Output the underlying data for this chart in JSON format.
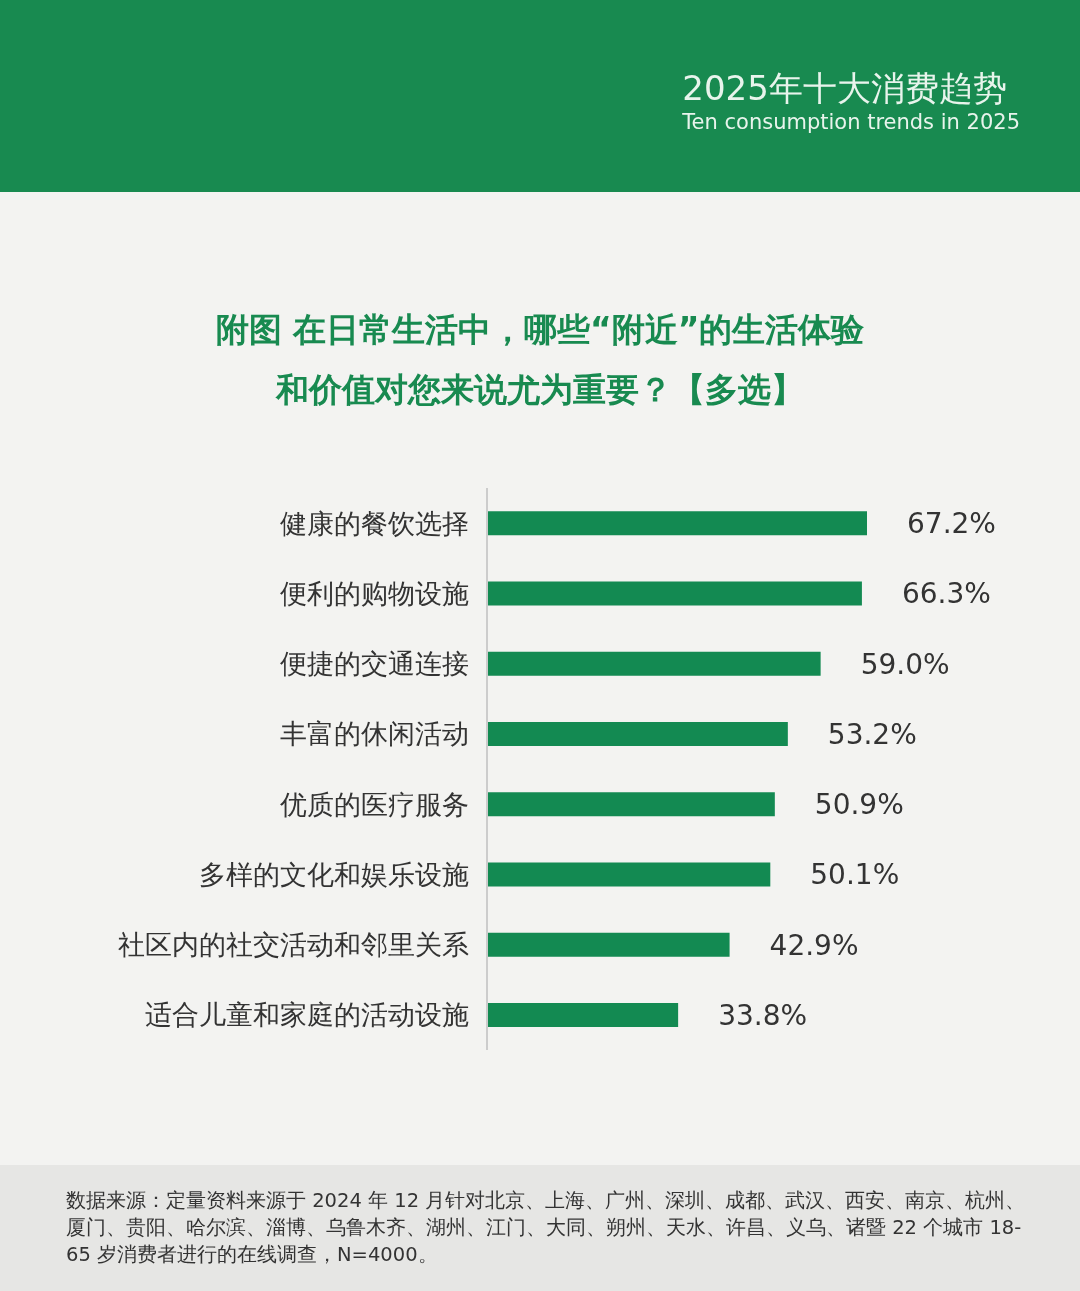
{
  "chart_data": {
    "type": "bar",
    "orientation": "horizontal",
    "title": "附图 在日常生活中，哪些“附近”的生活体验和价值对您来说尤为重要？【多选】",
    "categories": [
      "健康的餐饮选择",
      "便利的购物设施",
      "便捷的交通连接",
      "丰富的休闲活动",
      "优质的医疗服务",
      "多样的文化和娱乐设施",
      "社区内的社交活动和邻里关系",
      "适合儿童和家庭的活动设施"
    ],
    "values": [
      67.2,
      66.3,
      59.0,
      53.2,
      50.9,
      50.1,
      42.9,
      33.8
    ],
    "value_labels": [
      "67.2%",
      "66.3%",
      "59.0%",
      "53.2%",
      "50.9%",
      "50.1%",
      "42.9%",
      "33.8%"
    ],
    "color": "#138a52",
    "annotations": [
      "2025年十大消费趋势",
      "Ten consumption trends in 2025",
      "数据来源：定量资料来源于 2024 年 12 月针对北京、上海、广州、深圳、成都、武汉、西安、南京、杭州、厦门、贵阳、哈尔滨、淄博、乌鲁木齐、湖州、江门、大同、朔州、天水、许昌、义乌、诸暨 22 个城市 18-65 岁消费者进行的在线调查，N=4000。"
    ]
  }
}
